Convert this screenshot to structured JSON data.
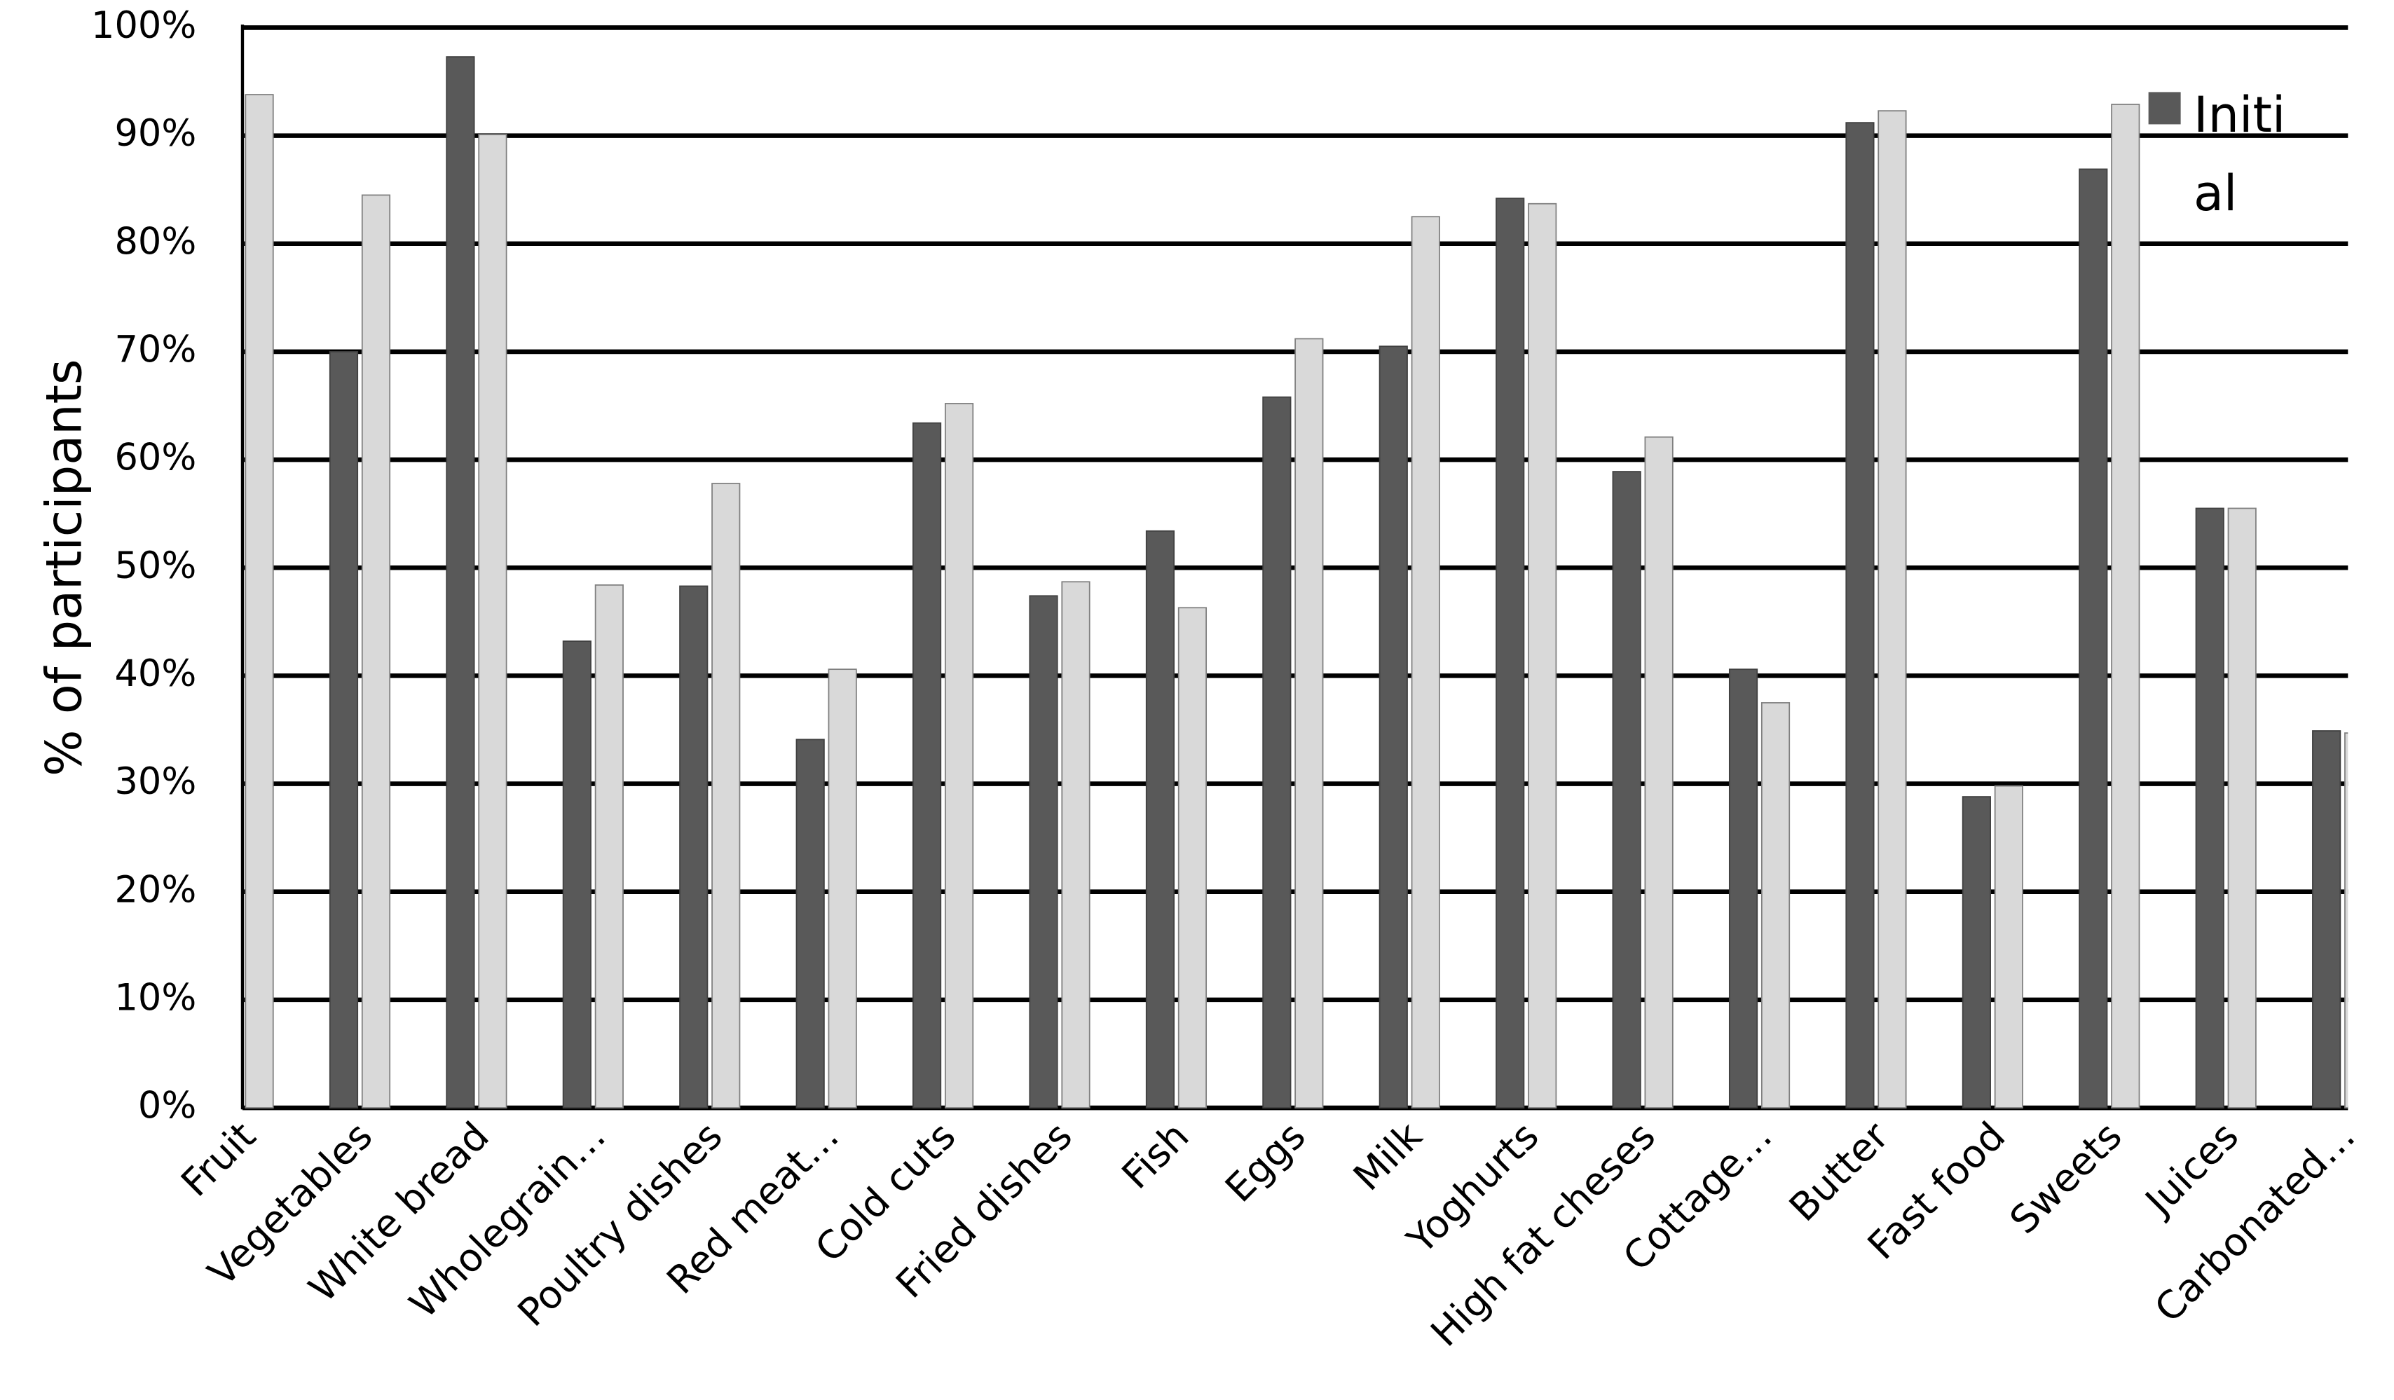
{
  "chart_data": {
    "type": "bar",
    "y_label": "% of participants",
    "categories": [
      "Fruit",
      "Vegetables",
      "White bread",
      "Wholegrain…",
      "Poultry dishes",
      "Red meat…",
      "Cold cuts",
      "Fried dishes",
      "Fish",
      "Eggs",
      "Milk",
      "Yoghurts",
      "High fat cheses",
      "Cottage…",
      "Butter",
      "Fast food",
      "Sweets",
      "Juices",
      "Carbonated…"
    ],
    "series": [
      {
        "name": "Initial",
        "color": "#595959",
        "values": [
          null,
          70.0,
          97.3,
          43.2,
          48.3,
          34.1,
          63.4,
          47.4,
          53.4,
          65.8,
          70.5,
          84.2,
          58.9,
          40.6,
          91.2,
          28.8,
          86.9,
          55.5,
          34.9
        ]
      },
      {
        "color": "#d9d9d9",
        "values": [
          93.8,
          84.5,
          90.1,
          48.4,
          57.8,
          40.6,
          65.2,
          48.7,
          46.3,
          71.2,
          82.5,
          83.7,
          62.1,
          37.5,
          92.3,
          29.8,
          92.9,
          55.5,
          34.7
        ]
      }
    ],
    "ylim": [
      0,
      100
    ],
    "yticks": [
      {
        "value": 0,
        "label": "0%"
      },
      {
        "value": 10,
        "label": "10%"
      },
      {
        "value": 20,
        "label": "20%"
      },
      {
        "value": 30,
        "label": "30%"
      },
      {
        "value": 40,
        "label": "40%"
      },
      {
        "value": 50,
        "label": "50%"
      },
      {
        "value": 60,
        "label": "60%"
      },
      {
        "value": 70,
        "label": "70%"
      },
      {
        "value": 80,
        "label": "80%"
      },
      {
        "value": 90,
        "label": "90%"
      },
      {
        "value": 100,
        "label": "100%"
      }
    ],
    "grid": true,
    "legend": "upper-right"
  }
}
